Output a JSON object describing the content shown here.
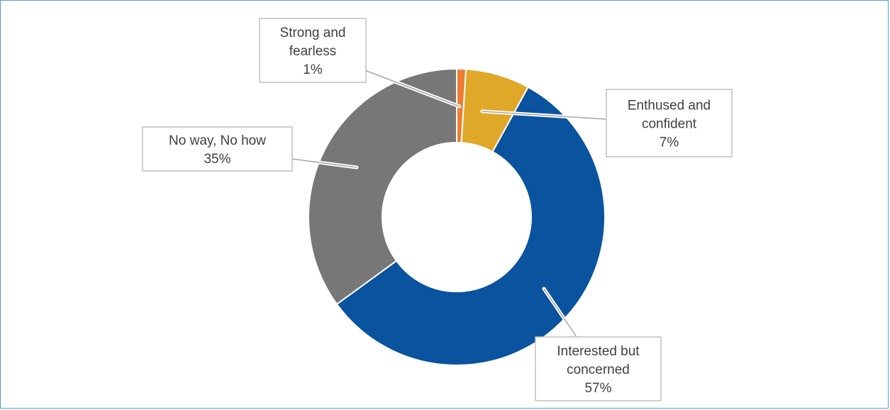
{
  "chart_data": {
    "type": "pie",
    "style": "donut",
    "title": "",
    "legend": "none",
    "slices": [
      {
        "label_lines": [
          "Strong and",
          "fearless"
        ],
        "value": 1,
        "value_label": "1%",
        "color": "#ed7d31"
      },
      {
        "label_lines": [
          "Enthused and",
          "confident"
        ],
        "value": 7,
        "value_label": "7%",
        "color": "#e0a829"
      },
      {
        "label_lines": [
          "Interested but",
          "concerned"
        ],
        "value": 57,
        "value_label": "57%",
        "color": "#0a539f"
      },
      {
        "label_lines": [
          "No way, No how"
        ],
        "value": 35,
        "value_label": "35%",
        "color": "#777777"
      }
    ]
  }
}
